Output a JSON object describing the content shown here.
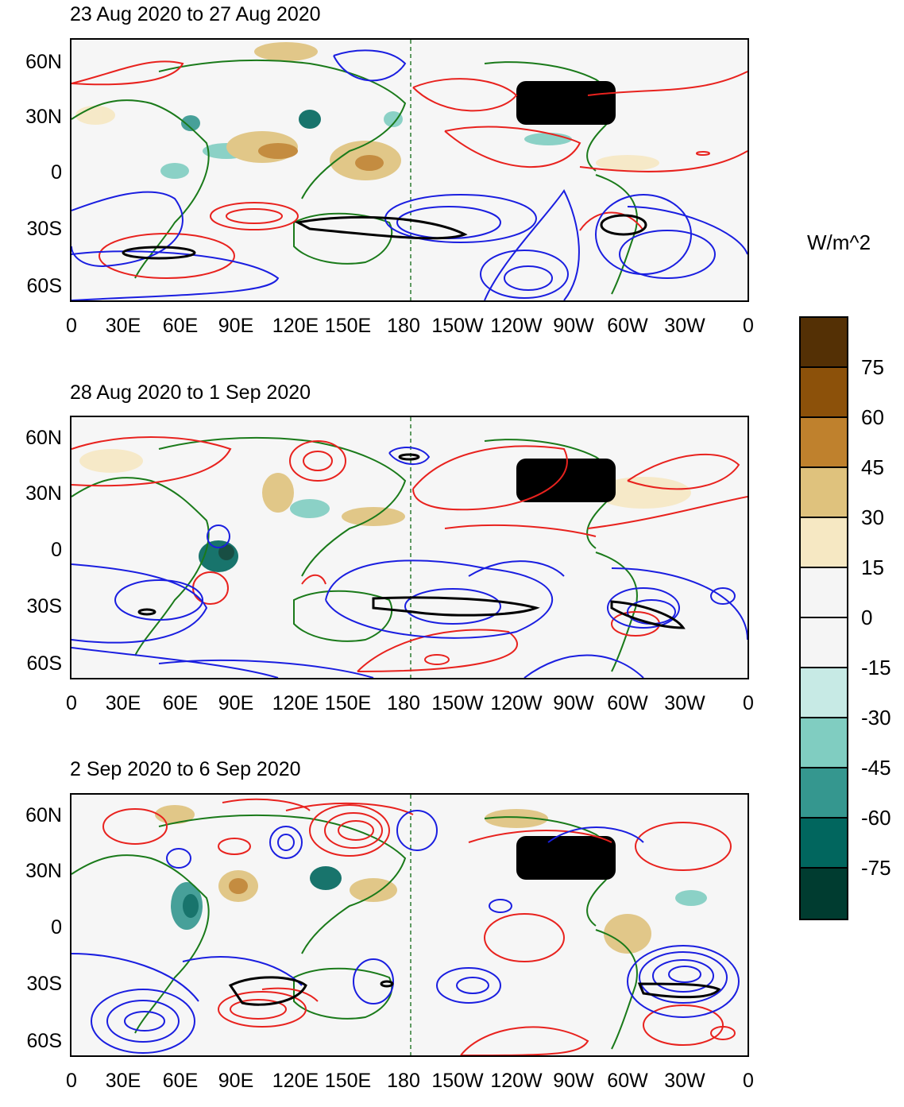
{
  "panels": [
    {
      "title": "23 Aug 2020 to 27 Aug 2020"
    },
    {
      "title": "28 Aug 2020 to 1 Sep 2020"
    },
    {
      "title": "2 Sep 2020 to 6 Sep 2020"
    }
  ],
  "lat_labels": [
    "60N",
    "30N",
    "0",
    "30S",
    "60S"
  ],
  "lon_labels": [
    "0",
    "30E",
    "60E",
    "90E",
    "120E",
    "150E",
    "180",
    "150W",
    "120W",
    "90W",
    "60W",
    "30W",
    "0"
  ],
  "colorbar": {
    "units": "W/m^2",
    "labels": [
      "75",
      "60",
      "45",
      "30",
      "15",
      "0",
      "-15",
      "-30",
      "-45",
      "-60",
      "-75"
    ],
    "colors": [
      "#543005",
      "#8c510a",
      "#bf812d",
      "#dfc27d",
      "#f6e8c3",
      "#f5f5f5",
      "#f5f5f5",
      "#c7eae5",
      "#80cdc1",
      "#35978f",
      "#01665e",
      "#003c30"
    ]
  },
  "colors": {
    "positive_contour": "#e8221e",
    "negative_contour": "#1a1ee0",
    "coastline": "#1a7a1a",
    "zero_line": "#2e7d32"
  }
}
